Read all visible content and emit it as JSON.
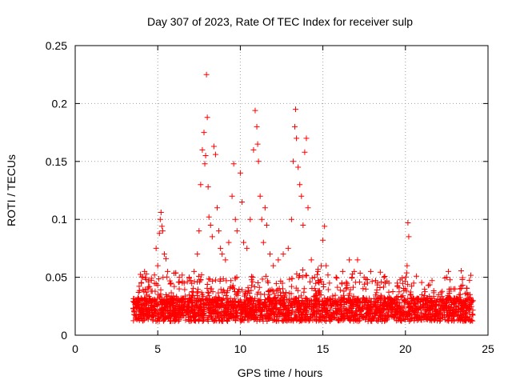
{
  "chart_data": {
    "type": "scatter",
    "title": "Day 307 of 2023, Rate Of TEC Index for receiver sulp",
    "xlabel": "GPS time / hours",
    "ylabel": "ROTI / TECUs",
    "xlim": [
      0,
      25
    ],
    "ylim": [
      0,
      0.25
    ],
    "xticks": [
      "0",
      "5",
      "10",
      "15",
      "20",
      "25"
    ],
    "yticks": [
      "0",
      "0.05",
      "0.1",
      "0.15",
      "0.2",
      "0.25"
    ],
    "grid": true,
    "marker": "plus",
    "color": "#ff0000",
    "x_start": 3.5,
    "x_end": 24.1,
    "series": [
      {
        "values": [
          [
            3.6,
            0.028
          ],
          [
            3.7,
            0.024
          ],
          [
            3.8,
            0.032
          ],
          [
            3.9,
            0.03
          ],
          [
            4.0,
            0.045
          ],
          [
            4.1,
            0.05
          ],
          [
            4.2,
            0.055
          ],
          [
            4.3,
            0.048
          ],
          [
            4.4,
            0.04
          ],
          [
            4.5,
            0.042
          ],
          [
            4.6,
            0.038
          ],
          [
            4.8,
            0.052
          ],
          [
            4.9,
            0.075
          ],
          [
            5.0,
            0.06
          ],
          [
            5.1,
            0.088
          ],
          [
            5.15,
            0.1
          ],
          [
            5.2,
            0.106
          ],
          [
            5.25,
            0.094
          ],
          [
            5.3,
            0.09
          ],
          [
            5.4,
            0.07
          ],
          [
            5.5,
            0.066
          ],
          [
            5.6,
            0.055
          ],
          [
            5.8,
            0.045
          ],
          [
            6.0,
            0.042
          ],
          [
            6.3,
            0.04
          ],
          [
            6.6,
            0.045
          ],
          [
            6.9,
            0.05
          ],
          [
            7.2,
            0.055
          ],
          [
            7.4,
            0.07
          ],
          [
            7.5,
            0.09
          ],
          [
            7.6,
            0.13
          ],
          [
            7.7,
            0.16
          ],
          [
            7.8,
            0.175
          ],
          [
            7.85,
            0.148
          ],
          [
            7.9,
            0.155
          ],
          [
            7.95,
            0.225
          ],
          [
            8.0,
            0.188
          ],
          [
            8.05,
            0.128
          ],
          [
            8.1,
            0.102
          ],
          [
            8.2,
            0.095
          ],
          [
            8.3,
            0.085
          ],
          [
            8.4,
            0.163
          ],
          [
            8.5,
            0.156
          ],
          [
            8.6,
            0.11
          ],
          [
            8.7,
            0.09
          ],
          [
            8.8,
            0.075
          ],
          [
            8.9,
            0.07
          ],
          [
            9.1,
            0.065
          ],
          [
            9.3,
            0.08
          ],
          [
            9.5,
            0.12
          ],
          [
            9.6,
            0.148
          ],
          [
            9.7,
            0.1
          ],
          [
            9.8,
            0.09
          ],
          [
            10.0,
            0.14
          ],
          [
            10.1,
            0.115
          ],
          [
            10.2,
            0.08
          ],
          [
            10.4,
            0.075
          ],
          [
            10.6,
            0.1
          ],
          [
            10.8,
            0.16
          ],
          [
            10.9,
            0.194
          ],
          [
            11.0,
            0.18
          ],
          [
            11.05,
            0.165
          ],
          [
            11.1,
            0.15
          ],
          [
            11.2,
            0.12
          ],
          [
            11.3,
            0.1
          ],
          [
            11.4,
            0.08
          ],
          [
            11.5,
            0.11
          ],
          [
            11.6,
            0.095
          ],
          [
            11.8,
            0.07
          ],
          [
            12.0,
            0.06
          ],
          [
            12.3,
            0.065
          ],
          [
            12.6,
            0.07
          ],
          [
            12.9,
            0.075
          ],
          [
            13.1,
            0.1
          ],
          [
            13.2,
            0.15
          ],
          [
            13.3,
            0.18
          ],
          [
            13.35,
            0.195
          ],
          [
            13.4,
            0.17
          ],
          [
            13.5,
            0.145
          ],
          [
            13.6,
            0.13
          ],
          [
            13.7,
            0.12
          ],
          [
            13.8,
            0.095
          ],
          [
            13.9,
            0.158
          ],
          [
            14.0,
            0.17
          ],
          [
            14.1,
            0.11
          ],
          [
            14.3,
            0.065
          ],
          [
            14.5,
            0.05
          ],
          [
            14.7,
            0.055
          ],
          [
            14.9,
            0.06
          ],
          [
            15.0,
            0.082
          ],
          [
            15.1,
            0.094
          ],
          [
            15.2,
            0.06
          ],
          [
            15.4,
            0.045
          ],
          [
            15.8,
            0.05
          ],
          [
            16.2,
            0.055
          ],
          [
            16.6,
            0.065
          ],
          [
            16.9,
            0.055
          ],
          [
            17.1,
            0.065
          ],
          [
            17.5,
            0.05
          ],
          [
            17.9,
            0.055
          ],
          [
            18.3,
            0.045
          ],
          [
            18.7,
            0.05
          ],
          [
            19.0,
            0.045
          ],
          [
            19.5,
            0.045
          ],
          [
            20.0,
            0.04
          ],
          [
            20.1,
            0.06
          ],
          [
            20.15,
            0.097
          ],
          [
            20.2,
            0.085
          ],
          [
            20.5,
            0.045
          ],
          [
            21.0,
            0.035
          ],
          [
            21.5,
            0.03
          ],
          [
            22.0,
            0.035
          ],
          [
            22.5,
            0.05
          ],
          [
            22.6,
            0.055
          ],
          [
            23.0,
            0.04
          ],
          [
            23.3,
            0.04
          ],
          [
            23.8,
            0.035
          ],
          [
            24.0,
            0.03
          ]
        ]
      }
    ]
  }
}
